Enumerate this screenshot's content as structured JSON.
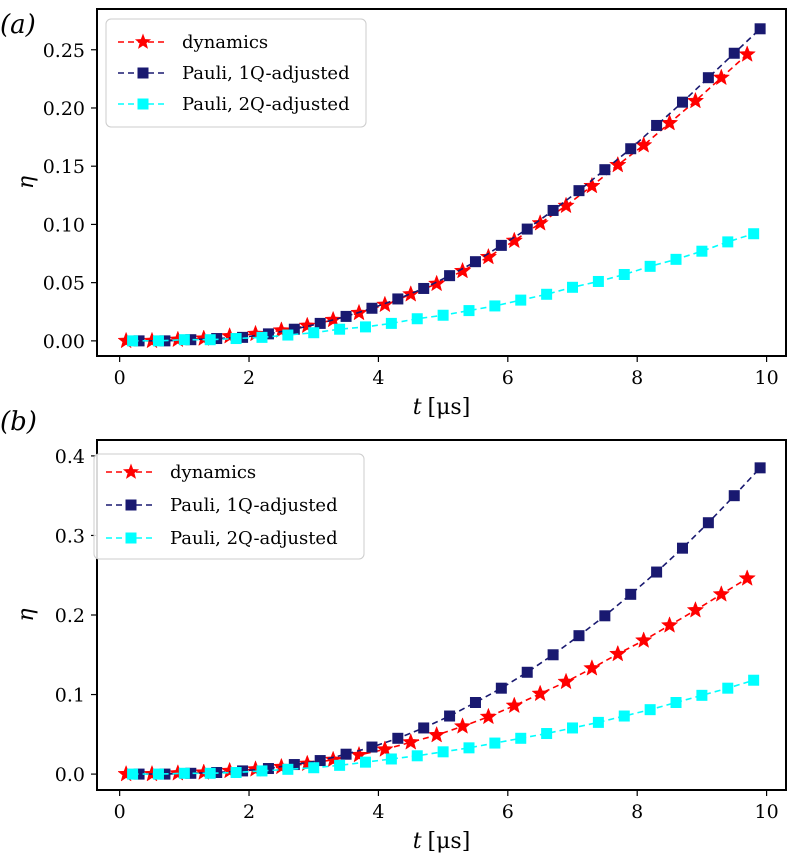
{
  "chart_data": [
    {
      "type": "line",
      "panel_label": "(a)",
      "xlabel_var": "t",
      "xlabel_unit": "[μs]",
      "ylabel": "η",
      "xlim": [
        -0.35,
        10.3
      ],
      "ylim": [
        -0.013,
        0.285
      ],
      "xticks": [
        "0",
        "2",
        "4",
        "6",
        "8",
        "10"
      ],
      "yticks": [
        "0.00",
        "0.05",
        "0.10",
        "0.15",
        "0.20",
        "0.25"
      ],
      "legend_position": "top-left",
      "series": [
        {
          "name": "dynamics",
          "color": "#ff0000",
          "marker": "star",
          "x": [
            0.1,
            0.5,
            0.9,
            1.3,
            1.7,
            2.1,
            2.5,
            2.9,
            3.3,
            3.7,
            4.1,
            4.5,
            4.9,
            5.3,
            5.7,
            6.1,
            6.5,
            6.9,
            7.3,
            7.7,
            8.1,
            8.5,
            8.9,
            9.3,
            9.7
          ],
          "y": [
            0.0,
            0.0,
            0.001,
            0.002,
            0.004,
            0.006,
            0.009,
            0.013,
            0.018,
            0.024,
            0.031,
            0.04,
            0.049,
            0.06,
            0.072,
            0.086,
            0.101,
            0.116,
            0.133,
            0.151,
            0.168,
            0.187,
            0.206,
            0.226,
            0.246
          ]
        },
        {
          "name": "Pauli, 1Q-adjusted",
          "color": "#191970",
          "marker": "square",
          "x": [
            0.3,
            0.7,
            1.1,
            1.5,
            1.9,
            2.3,
            2.7,
            3.1,
            3.5,
            3.9,
            4.3,
            4.7,
            5.1,
            5.5,
            5.9,
            6.3,
            6.7,
            7.1,
            7.5,
            7.9,
            8.3,
            8.7,
            9.1,
            9.5,
            9.9
          ],
          "y": [
            0.0,
            0.0,
            0.001,
            0.002,
            0.003,
            0.006,
            0.01,
            0.015,
            0.021,
            0.028,
            0.036,
            0.045,
            0.056,
            0.068,
            0.082,
            0.096,
            0.112,
            0.129,
            0.147,
            0.165,
            0.185,
            0.205,
            0.226,
            0.247,
            0.268
          ]
        },
        {
          "name": "Pauli, 2Q-adjusted",
          "color": "#00ffff",
          "marker": "square",
          "x": [
            0.2,
            0.6,
            1.0,
            1.4,
            1.8,
            2.2,
            2.6,
            3.0,
            3.4,
            3.8,
            4.2,
            4.6,
            5.0,
            5.4,
            5.8,
            6.2,
            6.6,
            7.0,
            7.4,
            7.8,
            8.2,
            8.6,
            9.0,
            9.4,
            9.8
          ],
          "y": [
            0.0,
            0.0,
            0.001,
            0.001,
            0.002,
            0.003,
            0.005,
            0.007,
            0.01,
            0.012,
            0.015,
            0.019,
            0.022,
            0.026,
            0.03,
            0.035,
            0.04,
            0.046,
            0.051,
            0.057,
            0.064,
            0.07,
            0.077,
            0.085,
            0.092
          ]
        }
      ]
    },
    {
      "type": "line",
      "panel_label": "(b)",
      "xlabel_var": "t",
      "xlabel_unit": "[μs]",
      "ylabel": "η",
      "xlim": [
        -0.35,
        10.3
      ],
      "ylim": [
        -0.02,
        0.42
      ],
      "xticks": [
        "0",
        "2",
        "4",
        "6",
        "8",
        "10"
      ],
      "yticks": [
        "0.0",
        "0.1",
        "0.2",
        "0.3",
        "0.4"
      ],
      "legend_position": "top-left",
      "series": [
        {
          "name": "dynamics",
          "color": "#ff0000",
          "marker": "star",
          "x": [
            0.1,
            0.5,
            0.9,
            1.3,
            1.7,
            2.1,
            2.5,
            2.9,
            3.3,
            3.7,
            4.1,
            4.5,
            4.9,
            5.3,
            5.7,
            6.1,
            6.5,
            6.9,
            7.3,
            7.7,
            8.1,
            8.5,
            8.9,
            9.3,
            9.7
          ],
          "y": [
            0.0,
            0.0,
            0.001,
            0.002,
            0.004,
            0.006,
            0.009,
            0.013,
            0.018,
            0.024,
            0.031,
            0.04,
            0.049,
            0.06,
            0.072,
            0.086,
            0.101,
            0.116,
            0.133,
            0.151,
            0.168,
            0.187,
            0.206,
            0.226,
            0.246
          ]
        },
        {
          "name": "Pauli, 1Q-adjusted",
          "color": "#191970",
          "marker": "square",
          "x": [
            0.3,
            0.7,
            1.1,
            1.5,
            1.9,
            2.3,
            2.7,
            3.1,
            3.5,
            3.9,
            4.3,
            4.7,
            5.1,
            5.5,
            5.9,
            6.3,
            6.7,
            7.1,
            7.5,
            7.9,
            8.3,
            8.7,
            9.1,
            9.5,
            9.9
          ],
          "y": [
            0.0,
            0.0,
            0.001,
            0.002,
            0.004,
            0.007,
            0.012,
            0.017,
            0.025,
            0.034,
            0.045,
            0.058,
            0.073,
            0.09,
            0.108,
            0.128,
            0.15,
            0.174,
            0.199,
            0.226,
            0.254,
            0.284,
            0.316,
            0.35,
            0.385
          ]
        },
        {
          "name": "Pauli, 2Q-adjusted",
          "color": "#00ffff",
          "marker": "square",
          "x": [
            0.2,
            0.6,
            1.0,
            1.4,
            1.8,
            2.2,
            2.6,
            3.0,
            3.4,
            3.8,
            4.2,
            4.6,
            5.0,
            5.4,
            5.8,
            6.2,
            6.6,
            7.0,
            7.4,
            7.8,
            8.2,
            8.6,
            9.0,
            9.4,
            9.8
          ],
          "y": [
            0.0,
            0.0,
            0.001,
            0.001,
            0.002,
            0.004,
            0.006,
            0.008,
            0.011,
            0.015,
            0.019,
            0.023,
            0.028,
            0.033,
            0.039,
            0.045,
            0.051,
            0.058,
            0.065,
            0.073,
            0.081,
            0.09,
            0.099,
            0.108,
            0.118
          ]
        }
      ]
    }
  ]
}
